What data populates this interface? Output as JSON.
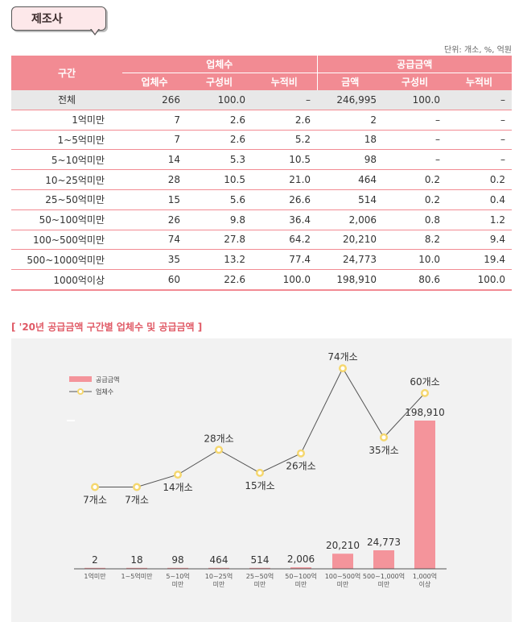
{
  "header": {
    "tag": "제조사",
    "unit": "단위: 개소, %, 억원"
  },
  "table": {
    "col_group_label": "구간",
    "group1": "업체수",
    "group2": "공급금액",
    "sub1": [
      "업체수",
      "구성비",
      "누적비"
    ],
    "sub2": [
      "금액",
      "구성비",
      "누적비"
    ],
    "rows": [
      {
        "label": "전체",
        "cells": [
          "266",
          "100.0",
          "–",
          "246,995",
          "100.0",
          "–"
        ]
      },
      {
        "label": "1억미만",
        "cells": [
          "7",
          "2.6",
          "2.6",
          "2",
          "–",
          "–"
        ]
      },
      {
        "label": "1~5억미만",
        "cells": [
          "7",
          "2.6",
          "5.2",
          "18",
          "–",
          "–"
        ]
      },
      {
        "label": "5~10억미만",
        "cells": [
          "14",
          "5.3",
          "10.5",
          "98",
          "–",
          "–"
        ]
      },
      {
        "label": "10~25억미만",
        "cells": [
          "28",
          "10.5",
          "21.0",
          "464",
          "0.2",
          "0.2"
        ]
      },
      {
        "label": "25~50억미만",
        "cells": [
          "15",
          "5.6",
          "26.6",
          "514",
          "0.2",
          "0.4"
        ]
      },
      {
        "label": "50~100억미만",
        "cells": [
          "26",
          "9.8",
          "36.4",
          "2,006",
          "0.8",
          "1.2"
        ]
      },
      {
        "label": "100~500억미만",
        "cells": [
          "74",
          "27.8",
          "64.2",
          "20,210",
          "8.2",
          "9.4"
        ]
      },
      {
        "label": "500~1000억미만",
        "cells": [
          "35",
          "13.2",
          "77.4",
          "24,773",
          "10.0",
          "19.4"
        ]
      },
      {
        "label": "1000억이상",
        "cells": [
          "60",
          "22.6",
          "100.0",
          "198,910",
          "80.6",
          "100.0"
        ]
      }
    ]
  },
  "chart_data": {
    "type": "bar",
    "title": "[ '20년 공급금액 구간별 업체수 및 공급금액 ]",
    "categories": [
      [
        "1억미만"
      ],
      [
        "1~5억미만"
      ],
      [
        "5~10억",
        "미만"
      ],
      [
        "10~25억",
        "미만"
      ],
      [
        "25~50억",
        "미만"
      ],
      [
        "50~100억",
        "미만"
      ],
      [
        "100~500억",
        "미만"
      ],
      [
        "500~1,000억",
        "미만"
      ],
      [
        "1,000억",
        "이상"
      ]
    ],
    "series": [
      {
        "name": "공급금액",
        "kind": "bar",
        "values": [
          2,
          18,
          98,
          464,
          514,
          2006,
          20210,
          24773,
          198910
        ],
        "labels": [
          "2",
          "18",
          "98",
          "464",
          "514",
          "2,006",
          "20,210",
          "24,773",
          "198,910"
        ]
      },
      {
        "name": "업체수",
        "kind": "line",
        "values": [
          7,
          7,
          14,
          28,
          15,
          26,
          74,
          35,
          60
        ],
        "labels": [
          "7개소",
          "7개소",
          "14개소",
          "28개소",
          "15개소",
          "26개소",
          "74개소",
          "35개소",
          "60개소"
        ]
      }
    ],
    "legend": "top-left",
    "colors": {
      "bar": "#f4949b",
      "line": "#555555",
      "marker_fill": "#ffffff",
      "marker_stroke": "#f5d76e"
    }
  }
}
